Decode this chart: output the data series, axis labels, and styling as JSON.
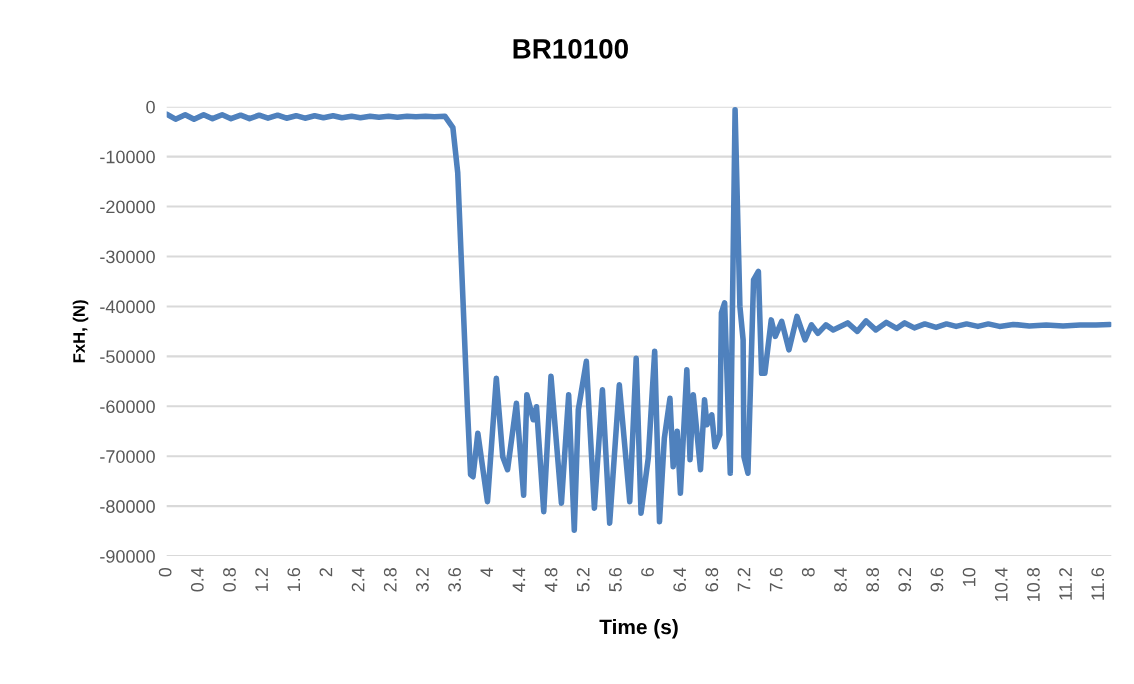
{
  "chart_data": {
    "type": "line",
    "title": "BR10100",
    "xlabel": "Time (s)",
    "ylabel": "FxH, (N)",
    "x": [
      0,
      0.11,
      0.23,
      0.34,
      0.46,
      0.57,
      0.69,
      0.8,
      0.92,
      1.03,
      1.15,
      1.26,
      1.38,
      1.49,
      1.61,
      1.72,
      1.84,
      1.95,
      2.07,
      2.18,
      2.3,
      2.41,
      2.53,
      2.64,
      2.76,
      2.87,
      2.99,
      3.1,
      3.22,
      3.33,
      3.46,
      3.56,
      3.62,
      3.68,
      3.74,
      3.78,
      3.81,
      3.87,
      3.99,
      4.1,
      4.18,
      4.24,
      4.35,
      4.44,
      4.48,
      4.56,
      4.6,
      4.69,
      4.78,
      4.91,
      5.0,
      5.07,
      5.12,
      5.22,
      5.32,
      5.42,
      5.51,
      5.63,
      5.76,
      5.84,
      5.9,
      5.99,
      6.07,
      6.13,
      6.19,
      6.26,
      6.3,
      6.35,
      6.39,
      6.47,
      6.51,
      6.55,
      6.64,
      6.69,
      6.72,
      6.78,
      6.82,
      6.88,
      6.9,
      6.94,
      7.01,
      7.07,
      7.13,
      7.17,
      7.18,
      7.23,
      7.3,
      7.36,
      7.4,
      7.44,
      7.52,
      7.57,
      7.65,
      7.74,
      7.84,
      7.94,
      8.02,
      8.1,
      8.2,
      8.29,
      8.47,
      8.59,
      8.7,
      8.82,
      8.95,
      9.08,
      9.18,
      9.3,
      9.43,
      9.57,
      9.7,
      9.82,
      9.95,
      10.09,
      10.22,
      10.36,
      10.53,
      10.73,
      10.94,
      11.15,
      11.36,
      11.56,
      11.73
    ],
    "series": [
      {
        "color": "#4f81bd",
        "values": [
          -1500,
          -2500,
          -1600,
          -2500,
          -1600,
          -2400,
          -1600,
          -2400,
          -1700,
          -2400,
          -1700,
          -2300,
          -1700,
          -2300,
          -1800,
          -2300,
          -1800,
          -2200,
          -1800,
          -2200,
          -1900,
          -2200,
          -1900,
          -2100,
          -1900,
          -2100,
          -1900,
          -2000,
          -1900,
          -2000,
          -1900,
          -4200,
          -13200,
          -36700,
          -60100,
          -73700,
          -74100,
          -65400,
          -79100,
          -54400,
          -70100,
          -72700,
          -59400,
          -77800,
          -57700,
          -62700,
          -60100,
          -81100,
          -54000,
          -79400,
          -57700,
          -84800,
          -60700,
          -51000,
          -80400,
          -56700,
          -83400,
          -55700,
          -79100,
          -50400,
          -81400,
          -70400,
          -49000,
          -83100,
          -66400,
          -58400,
          -72100,
          -65000,
          -77400,
          -52700,
          -70700,
          -57700,
          -72700,
          -58700,
          -63700,
          -61700,
          -68100,
          -65700,
          -41300,
          -39300,
          -73400,
          -600,
          -40000,
          -46700,
          -70100,
          -73400,
          -34700,
          -33000,
          -53400,
          -53400,
          -42700,
          -46000,
          -43000,
          -48700,
          -42000,
          -46700,
          -43700,
          -45400,
          -43700,
          -44700,
          -43300,
          -45000,
          -42900,
          -44700,
          -43200,
          -44400,
          -43300,
          -44300,
          -43500,
          -44200,
          -43500,
          -44000,
          -43500,
          -44000,
          -43500,
          -44000,
          -43600,
          -43900,
          -43700,
          -43900,
          -43700,
          -43700,
          -43600
        ]
      }
    ],
    "xlim": [
      0,
      11.75
    ],
    "xticks": [
      0,
      0.4,
      0.8,
      1.2,
      1.6,
      2,
      2.4,
      2.8,
      3.2,
      3.6,
      4,
      4.4,
      4.8,
      5.2,
      5.6,
      6,
      6.4,
      6.8,
      7.2,
      7.6,
      8,
      8.4,
      8.8,
      9.2,
      9.6,
      10,
      10.4,
      10.8,
      11.2,
      11.6
    ],
    "ylim": [
      -90000,
      0
    ],
    "yticks": [
      -90000,
      -80000,
      -70000,
      -60000,
      -50000,
      -40000,
      -30000,
      -20000,
      -10000,
      0
    ],
    "grid": "y",
    "marker": "none",
    "line_style": "solid"
  }
}
